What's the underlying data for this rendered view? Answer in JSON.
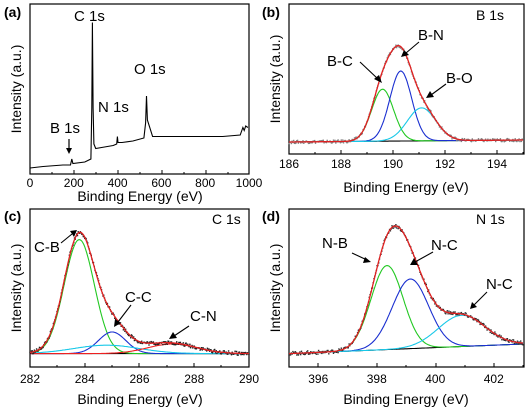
{
  "chart_data": [
    {
      "panel": "(a)",
      "type": "line",
      "title": "",
      "xlabel": "Binding Energy (eV)",
      "ylabel": "Intensity (a.u.)",
      "xlim": [
        0,
        1000
      ],
      "ylim": [
        0,
        100
      ],
      "xticks": [
        0,
        200,
        400,
        600,
        800,
        1000
      ],
      "yticks": [],
      "peaks": [
        {
          "label": "B 1s",
          "x": 191,
          "y": 10
        },
        {
          "label": "C 1s",
          "x": 285,
          "y": 97
        },
        {
          "label": "N 1s",
          "x": 399,
          "y": 20
        },
        {
          "label": "O 1s",
          "x": 532,
          "y": 48
        }
      ],
      "series": [
        {
          "color": "#000000",
          "x": [
            0,
            60,
            150,
            185,
            191,
            196,
            250,
            278,
            282,
            285,
            288,
            292,
            300,
            340,
            380,
            396,
            399,
            402,
            420,
            470,
            520,
            528,
            532,
            536,
            560,
            600,
            700,
            800,
            880,
            960,
            972,
            978,
            985,
            995
          ],
          "y": [
            0,
            1,
            2,
            2,
            6,
            3,
            4,
            6,
            40,
            97,
            40,
            16,
            13,
            14,
            15,
            16,
            21,
            17,
            17,
            18,
            20,
            30,
            48,
            32,
            21,
            21,
            21,
            21,
            21,
            22,
            27,
            25,
            28,
            27
          ]
        }
      ]
    },
    {
      "panel": "(b)",
      "type": "line",
      "title": "B 1s",
      "xlabel": "Binding Energy (eV)",
      "ylabel": "Intensity (a.u.)",
      "xlim": [
        186,
        195
      ],
      "ylim": [
        0,
        100
      ],
      "xticks": [
        186,
        188,
        190,
        192,
        194
      ],
      "yticks": [],
      "annotations": [
        {
          "label": "B-C",
          "x": 189.6
        },
        {
          "label": "B-N",
          "x": 190.3
        },
        {
          "label": "B-O",
          "x": 191.1
        }
      ],
      "baseline": [
        [
          186,
          3
        ],
        [
          195,
          5
        ]
      ],
      "components": [
        {
          "name": "B-C",
          "color": "#22c822",
          "center": 189.6,
          "amplitude": 52,
          "sigma": 0.42
        },
        {
          "name": "B-N",
          "color": "#1a2fd0",
          "center": 190.3,
          "amplitude": 70,
          "sigma": 0.42
        },
        {
          "name": "B-O",
          "color": "#18c8e8",
          "center": 191.1,
          "amplitude": 33,
          "sigma": 0.55
        }
      ],
      "fit_color": "#e02020",
      "data_color": "#808080"
    },
    {
      "panel": "(c)",
      "type": "line",
      "title": "C 1s",
      "xlabel": "Binding Energy (eV)",
      "ylabel": "Intensity (a.u.)",
      "xlim": [
        282,
        290
      ],
      "ylim": [
        0,
        100
      ],
      "xticks": [
        282,
        284,
        286,
        288,
        290
      ],
      "yticks": [],
      "annotations": [
        {
          "label": "C-B",
          "x": 283.8
        },
        {
          "label": "C-C",
          "x": 285.1
        },
        {
          "label": "C-N",
          "x": 287.2
        }
      ],
      "baseline": [
        [
          282,
          2
        ],
        [
          290,
          2
        ]
      ],
      "components": [
        {
          "name": "C-B",
          "color": "#22c822",
          "center": 283.8,
          "amplitude": 95,
          "sigma": 0.55
        },
        {
          "name": "C-C",
          "color": "#1a2fd0",
          "center": 285.0,
          "amplitude": 18,
          "sigma": 0.5
        },
        {
          "name": "C-cyan",
          "color": "#18c8e8",
          "center": 284.8,
          "amplitude": 7,
          "sigma": 1.2
        },
        {
          "name": "C-N",
          "color": "#ee2020",
          "center": 287.2,
          "amplitude": 8,
          "sigma": 0.9
        }
      ],
      "fit_color": "#e02020",
      "data_color": "#202020"
    },
    {
      "panel": "(d)",
      "type": "line",
      "title": "N 1s",
      "xlabel": "Binding Energy (eV)",
      "ylabel": "Intensity (a.u.)",
      "xlim": [
        395,
        403
      ],
      "ylim": [
        0,
        100
      ],
      "xticks": [
        396,
        398,
        400,
        402
      ],
      "yticks": [],
      "annotations": [
        {
          "label": "N-B",
          "x": 398.4
        },
        {
          "label": "N-C",
          "x": 399.2
        },
        {
          "label": "N-C",
          "x": 400.9
        }
      ],
      "baseline": [
        [
          395,
          2
        ],
        [
          403,
          10
        ]
      ],
      "components": [
        {
          "name": "N-B",
          "color": "#22c822",
          "center": 398.35,
          "amplitude": 70,
          "sigma": 0.55
        },
        {
          "name": "N-C",
          "color": "#1a2fd0",
          "center": 399.15,
          "amplitude": 58,
          "sigma": 0.62
        },
        {
          "name": "N-C (2)",
          "color": "#18c8e8",
          "center": 400.9,
          "amplitude": 26,
          "sigma": 0.8
        }
      ],
      "fit_color": "#e02020",
      "data_color": "#303030"
    }
  ]
}
